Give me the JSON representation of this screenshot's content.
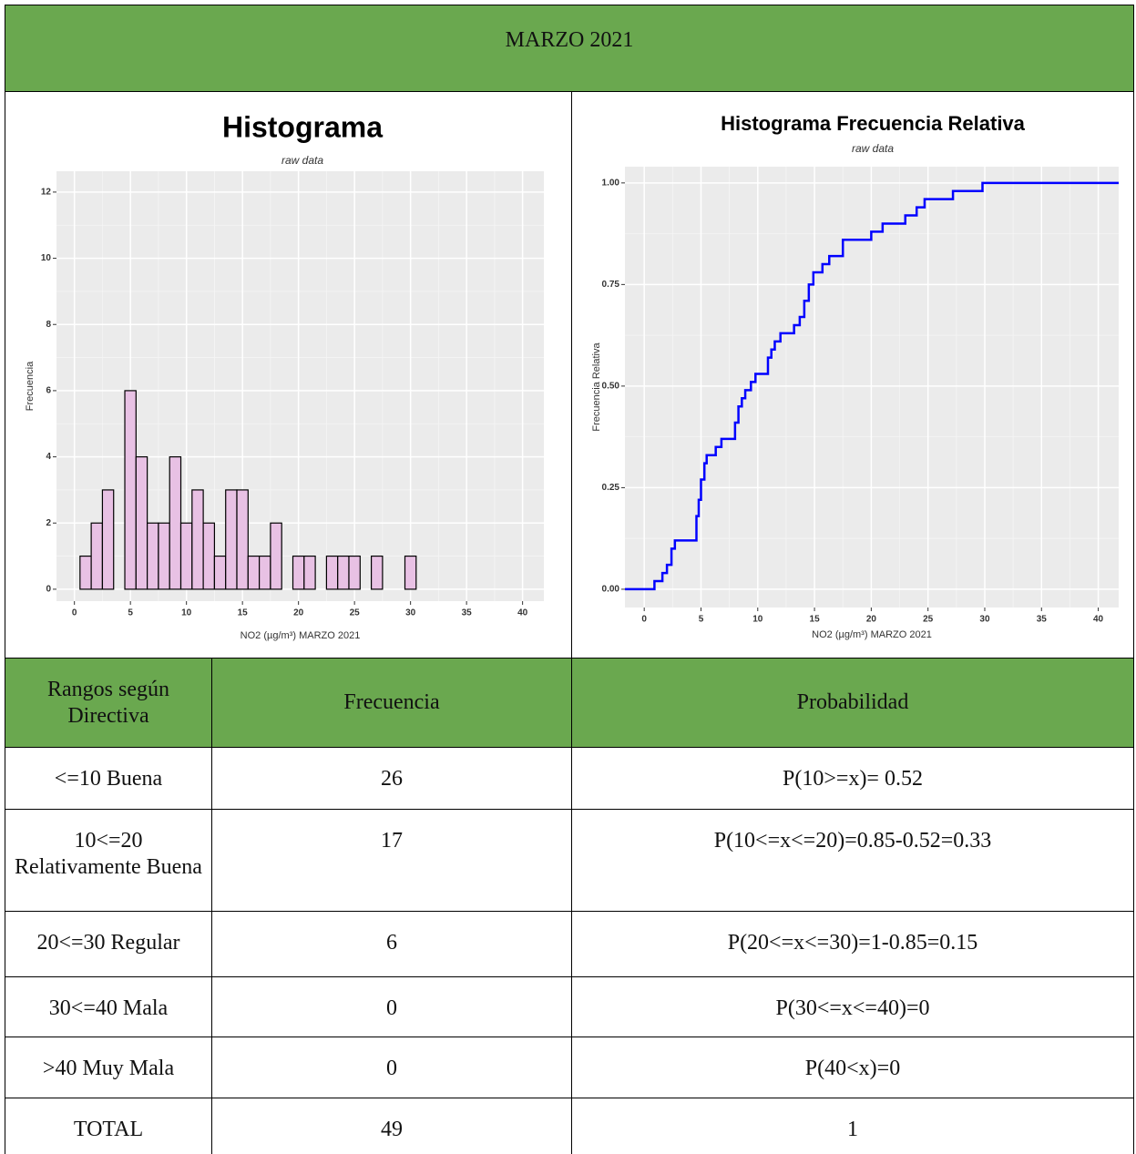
{
  "header": {
    "title": "MARZO 2021"
  },
  "chart_data": [
    {
      "type": "histogram",
      "title": "Histograma",
      "subtitle": "raw data",
      "x_label": "NO2 (µg/m³) MARZO 2021",
      "y_label": "Frecuencia",
      "bins": [
        0.5,
        1.5,
        2.5,
        3.5,
        4.5,
        5.5,
        6.5,
        7.5,
        8.5,
        9.5,
        10.5,
        11.5,
        12.5,
        13.5,
        14.5,
        15.5,
        16.5,
        17.5,
        18.5,
        19.5,
        20.5,
        21.5,
        22.5,
        23.5,
        24.5,
        25.5,
        26.5,
        27.5,
        28.5,
        29.5,
        30.5,
        31.5,
        32.5,
        33.5,
        34.5,
        35.5,
        36.5,
        37.5,
        38.5,
        39.5,
        40.5
      ],
      "values": [
        1,
        2,
        3,
        0,
        6,
        4,
        2,
        2,
        4,
        2,
        3,
        2,
        1,
        3,
        3,
        1,
        1,
        2,
        0,
        1,
        1,
        0,
        1,
        1,
        1,
        0,
        1,
        0,
        0,
        1,
        0,
        0,
        0,
        0,
        0,
        0,
        0,
        0,
        0,
        0
      ],
      "color": "#e8c1e4",
      "xlim": [
        -1.6,
        41.9
      ],
      "xticks": [
        0,
        5,
        10,
        15,
        20,
        25,
        30,
        35,
        40
      ],
      "ylim": [
        -0.36,
        12.63
      ],
      "yticks": [
        0,
        2,
        4,
        6,
        8,
        10,
        12
      ],
      "grid": true
    },
    {
      "type": "step",
      "title": "Histograma Frecuencia Relativa",
      "subtitle": "raw data",
      "x_label": "NO2 (µg/m³) MARZO 2021",
      "y_label": "Frecuencia Relativa",
      "x": [
        0.9,
        1.6,
        2.0,
        2.4,
        2.7,
        4.6,
        4.8,
        5.0,
        5.3,
        5.5,
        6.3,
        6.8,
        8.0,
        8.3,
        8.6,
        8.9,
        9.4,
        9.8,
        10.9,
        11.2,
        11.5,
        12.0,
        13.2,
        13.7,
        14.1,
        14.5,
        14.9,
        15.7,
        16.3,
        17.5,
        20.0,
        21.0,
        23.0,
        24.0,
        24.7,
        27.2,
        29.8
      ],
      "values": [
        0.02,
        0.04,
        0.06,
        0.1,
        0.12,
        0.18,
        0.22,
        0.27,
        0.31,
        0.33,
        0.35,
        0.37,
        0.41,
        0.45,
        0.47,
        0.49,
        0.51,
        0.53,
        0.57,
        0.59,
        0.61,
        0.63,
        0.65,
        0.67,
        0.71,
        0.75,
        0.78,
        0.8,
        0.82,
        0.86,
        0.88,
        0.9,
        0.92,
        0.94,
        0.96,
        0.98,
        1.0
      ],
      "color": "#0000ff",
      "xlim": [
        -1.7,
        41.8
      ],
      "xticks": [
        0,
        5,
        10,
        15,
        20,
        25,
        30,
        35,
        40
      ],
      "ylim": [
        -0.045,
        1.04
      ],
      "yticks": [
        {
          "value": 0,
          "label": "0.00"
        },
        {
          "value": 0.25,
          "label": "0.25"
        },
        {
          "value": 0.5,
          "label": "0.50"
        },
        {
          "value": 0.75,
          "label": "0.75"
        },
        {
          "value": 1,
          "label": "1.00"
        }
      ],
      "grid": true
    }
  ],
  "table": {
    "header": [
      "Rangos según Directiva",
      "Frecuencia",
      "Probabilidad"
    ],
    "rows": [
      [
        "<=10 Buena",
        26,
        "P(10>=x)= 0.52"
      ],
      [
        "10<=20 Relativamente Buena",
        17,
        "P(10<=x<=20)=0.85-0.52=0.33"
      ],
      [
        "20<=30 Regular",
        6,
        "P(20<=x<=30)=1-0.85=0.15"
      ],
      [
        "30<=40 Mala",
        0,
        "P(30<=x<=40)=0"
      ],
      [
        ">40 Muy Mala",
        0,
        "P(40<x)=0"
      ],
      [
        "TOTAL",
        49,
        1
      ]
    ]
  }
}
